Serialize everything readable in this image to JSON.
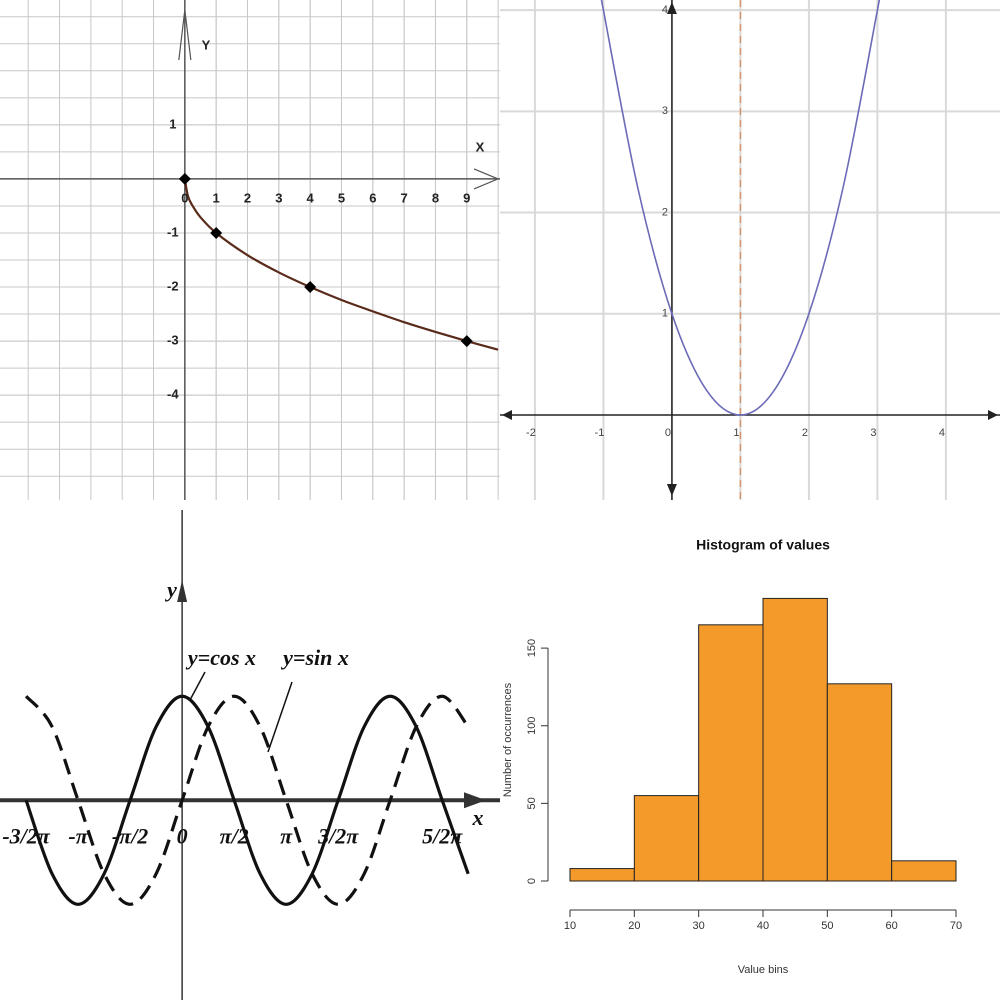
{
  "chart_data": [
    {
      "type": "line",
      "x_label": "X",
      "y_label": "Y",
      "xlim": [
        -5.9,
        10.06
      ],
      "ylim": [
        -5.94,
        3.31
      ],
      "xticks": [
        0,
        1,
        2,
        3,
        4,
        5,
        6,
        7,
        8,
        9
      ],
      "yticks": [
        -4,
        -3,
        -2,
        -1,
        1
      ],
      "grid": true,
      "grid_step": {
        "x": 1,
        "y": 0.5
      },
      "series": [
        {
          "color": "#5a2a1a",
          "x": [
            0,
            0.1,
            0.25,
            0.5,
            1,
            2,
            3,
            4,
            5,
            6,
            7,
            8,
            9,
            10
          ],
          "values": [
            0,
            -0.32,
            -0.5,
            -0.71,
            -1,
            -1.41,
            -1.73,
            -2,
            -2.24,
            -2.45,
            -2.65,
            -2.83,
            -3,
            -3.16
          ]
        },
        {
          "color": "#000000",
          "line": false,
          "marker": true,
          "x": [
            0,
            1,
            4,
            9
          ],
          "values": [
            0,
            -1,
            -2,
            -3
          ]
        }
      ]
    },
    {
      "type": "line",
      "xlim": [
        -2.51,
        4.79
      ],
      "ylim": [
        -0.84,
        4.1
      ],
      "xticks": [
        -2,
        -1,
        0,
        1,
        2,
        3,
        4
      ],
      "yticks": [
        1,
        2,
        3,
        4
      ],
      "grid": true,
      "vline": {
        "x": 1,
        "color": "#d4956b"
      },
      "series": [
        {
          "color": "#6b6bb8",
          "x": [
            -1.05,
            -1,
            -0.5,
            0,
            0.5,
            1,
            1.5,
            2,
            2.5,
            3,
            3.05
          ],
          "values": [
            4.2,
            4,
            2.25,
            1,
            0.25,
            0,
            0.25,
            1,
            2.25,
            4,
            4.2
          ]
        }
      ]
    },
    {
      "type": "line",
      "x_label": "x",
      "y_label": "y",
      "annotations": [
        "y=cos x",
        "y=sin x"
      ],
      "xlim": [
        -5.5,
        9.6
      ],
      "ylim": [
        -1.92,
        2.79
      ],
      "xticks": [
        {
          "value": -4.712,
          "label": "-3/2π"
        },
        {
          "value": -3.142,
          "label": "-π"
        },
        {
          "value": -1.571,
          "label": "-π/2"
        },
        0,
        {
          "value": 1.571,
          "label": "π/2"
        },
        {
          "value": 3.142,
          "label": "π"
        },
        {
          "value": 4.712,
          "label": "3/2π"
        },
        {
          "value": 7.854,
          "label": "5/2π"
        }
      ],
      "yticks": [],
      "grid": false,
      "x": [
        -4.712,
        -3.927,
        -3.142,
        -2.356,
        -1.571,
        -0.785,
        0,
        0.785,
        1.571,
        2.356,
        3.142,
        3.927,
        4.712,
        5.498,
        6.283,
        7.069,
        7.854,
        8.639
      ],
      "series": [
        {
          "color": "#111111",
          "values": [
            0,
            -0.707,
            -1,
            -0.707,
            0,
            0.707,
            1,
            0.707,
            0,
            -0.707,
            -1,
            -0.707,
            0,
            0.707,
            1,
            0.707,
            0,
            -0.707
          ]
        },
        {
          "color": "#111111",
          "dash": true,
          "values": [
            1,
            0.707,
            0,
            -0.707,
            -1,
            -0.707,
            0,
            0.707,
            1,
            0.707,
            0,
            -0.707,
            -1,
            -0.707,
            0,
            0.707,
            1,
            0.707
          ]
        }
      ]
    },
    {
      "type": "histogram",
      "title": "Histogram of values",
      "x_label": "Value bins",
      "y_label": "Number of occurrences",
      "bins": [
        10,
        20,
        30,
        40,
        50,
        60,
        70
      ],
      "values": [
        8,
        55,
        165,
        182,
        127,
        13
      ],
      "color": "#f39a2b",
      "xlim": [
        10,
        70
      ],
      "ylim": [
        0,
        190
      ],
      "xticks": [
        10,
        20,
        30,
        40,
        50,
        60,
        70
      ],
      "yticks": [
        0,
        50,
        100,
        150
      ]
    }
  ]
}
